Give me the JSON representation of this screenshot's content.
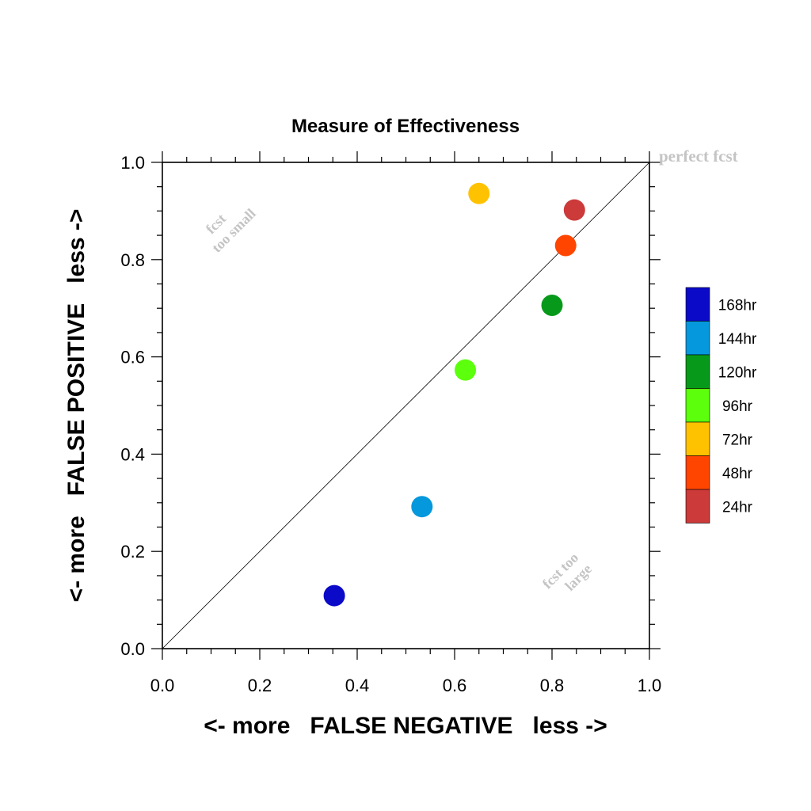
{
  "chart_data": {
    "type": "scatter",
    "title": "Measure of Effectiveness",
    "xlabel": "<- more   FALSE NEGATIVE   less ->",
    "ylabel": "<- more   FALSE POSITIVE   less ->",
    "xlim": [
      0.0,
      1.0
    ],
    "ylim": [
      0.0,
      1.0
    ],
    "xticks": [
      "0.0",
      "0.2",
      "0.4",
      "0.6",
      "0.8",
      "1.0"
    ],
    "yticks": [
      "0.0",
      "0.2",
      "0.4",
      "0.6",
      "0.8",
      "1.0"
    ],
    "grid": false,
    "reference_line": "diagonal y = x",
    "legend_position": "right",
    "points": [
      {
        "name": "168hr",
        "x": 0.353,
        "y": 0.109,
        "color": "#0a0ac8"
      },
      {
        "name": "144hr",
        "x": 0.533,
        "y": 0.292,
        "color": "#0598dc"
      },
      {
        "name": "120hr",
        "x": 0.8,
        "y": 0.706,
        "color": "#079a1a"
      },
      {
        "name": "96hr",
        "x": 0.622,
        "y": 0.573,
        "color": "#5cff0c"
      },
      {
        "name": "72hr",
        "x": 0.65,
        "y": 0.936,
        "color": "#ffc200"
      },
      {
        "name": "48hr",
        "x": 0.828,
        "y": 0.829,
        "color": "#ff4500"
      },
      {
        "name": "24hr",
        "x": 0.846,
        "y": 0.902,
        "color": "#cc3a3a"
      }
    ],
    "annotations": {
      "perfect": "perfect fcst",
      "small_line1": "fcst",
      "small_line2": "too small",
      "large_line1": "fcst too",
      "large_line2": "large"
    }
  }
}
